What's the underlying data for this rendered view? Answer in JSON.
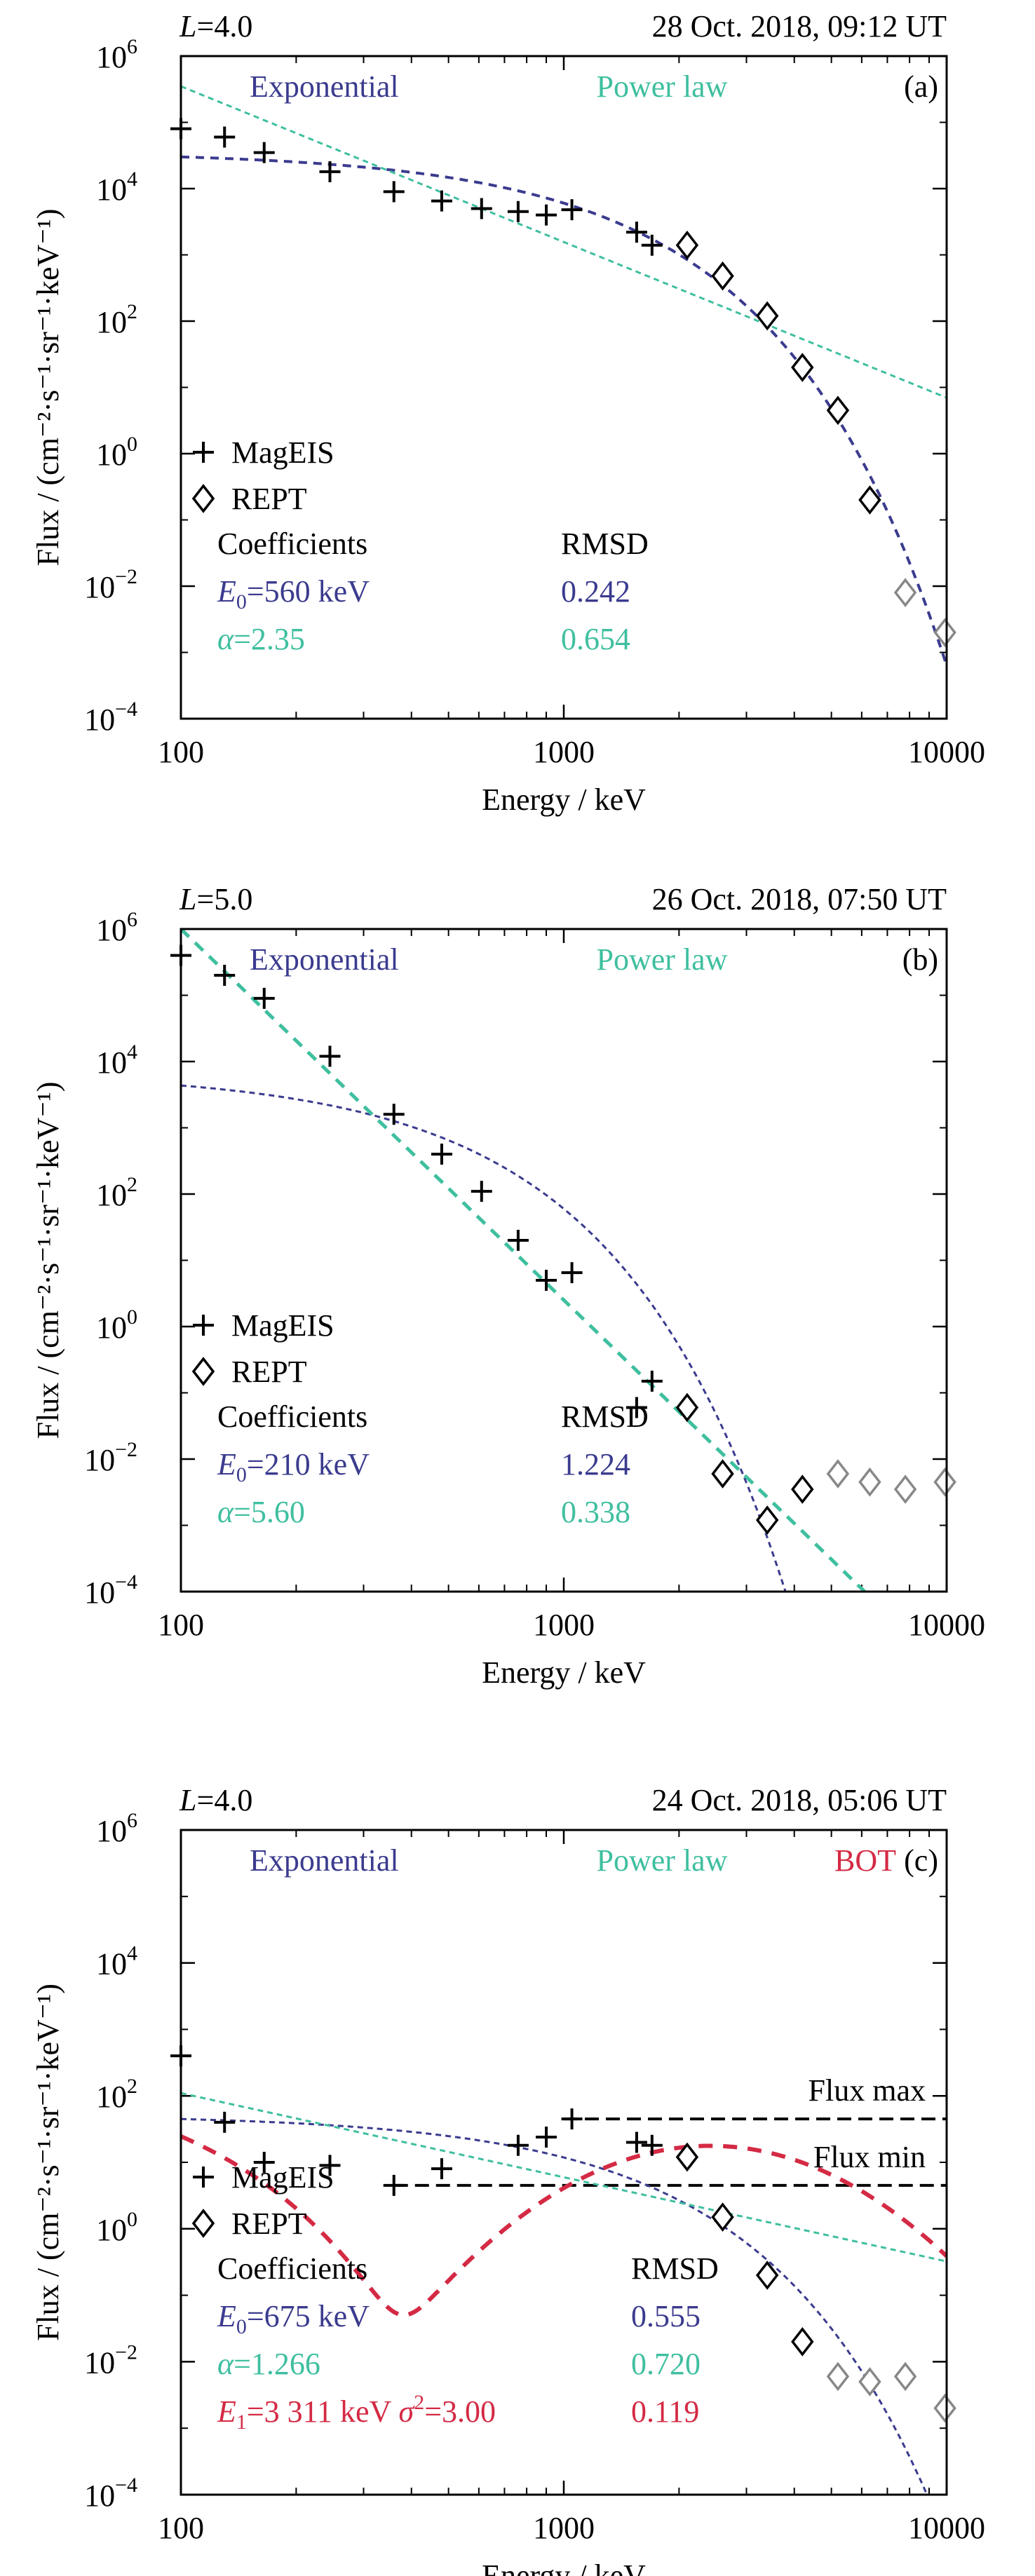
{
  "chart_data": [
    {
      "type": "scatter",
      "panel_label": "(a)",
      "header_left": {
        "var": "L",
        "eq": "=",
        "value": "4.0"
      },
      "header_right": "28 Oct. 2018, 09:12 UT",
      "xlabel": "Energy / keV",
      "ylabel": "Flux / (cm⁻²·s⁻¹·sr⁻¹·keV⁻¹)",
      "xscale": "log",
      "yscale": "log",
      "xlim": [
        100,
        10000
      ],
      "ylim": [
        0.0001,
        1000000
      ],
      "xticks": [
        {
          "v": 100,
          "label": "100"
        },
        {
          "v": 1000,
          "label": "1000"
        },
        {
          "v": 10000,
          "label": "10000"
        }
      ],
      "yticks": [
        {
          "v": 0.0001,
          "base": "10",
          "exp": "−4"
        },
        {
          "v": 0.01,
          "base": "10",
          "exp": "−2"
        },
        {
          "v": 1,
          "base": "10",
          "exp": "0"
        },
        {
          "v": 100,
          "base": "10",
          "exp": "2"
        },
        {
          "v": 10000,
          "base": "10",
          "exp": "4"
        },
        {
          "v": 1000000,
          "base": "10",
          "exp": "6"
        }
      ],
      "top_labels": [
        {
          "text": "Exponential",
          "color": "#3b3b8f",
          "pos": "left"
        },
        {
          "text": "Power law",
          "color": "#3fbf9f",
          "pos": "center"
        }
      ],
      "legend": [
        {
          "marker": "plus",
          "label": "MagEIS"
        },
        {
          "marker": "diamond",
          "label": "REPT"
        }
      ],
      "coefficients_title": "Coefficients",
      "rmsd_title": "RMSD",
      "coefficients": [
        {
          "sym": "E",
          "sub": "0",
          "text": "=560 keV",
          "rmsd": "0.242",
          "color": "#3b3b8f"
        },
        {
          "sym": "α",
          "sub": "",
          "text": "=2.35",
          "rmsd": "0.654",
          "color": "#3fbf9f"
        }
      ],
      "series": [
        {
          "name": "MagEIS",
          "marker": "plus",
          "color": "#000000",
          "points": [
            [
              100,
              80000
            ],
            [
              130,
              60000
            ],
            [
              165,
              35000
            ],
            [
              245,
              18000
            ],
            [
              360,
              9000
            ],
            [
              480,
              6500
            ],
            [
              610,
              5000
            ],
            [
              760,
              4500
            ],
            [
              900,
              4000
            ],
            [
              1050,
              4800
            ],
            [
              1550,
              2200
            ],
            [
              1700,
              1400
            ]
          ]
        },
        {
          "name": "REPT",
          "marker": "diamond",
          "color": "#000000",
          "points": [
            [
              2100,
              1400
            ],
            [
              2600,
              480
            ],
            [
              3400,
              120
            ],
            [
              4200,
              20
            ],
            [
              5200,
              4.5
            ],
            [
              6300,
              0.2
            ]
          ]
        },
        {
          "name": "REPT (background)",
          "marker": "diamond",
          "color": "#888888",
          "points": [
            [
              7800,
              0.008
            ],
            [
              9900,
              0.002
            ]
          ]
        }
      ],
      "fits": [
        {
          "name": "Exponential",
          "color": "#3b3b8f",
          "width": 3,
          "model": "exp",
          "j0": 36000,
          "E0": 560,
          "xmin": 100,
          "xmax": 10000
        },
        {
          "name": "Power law",
          "color": "#3fbf9f",
          "width": 2,
          "model": "pow",
          "A": 350000,
          "alpha": 2.35,
          "xmin": 100,
          "xmax": 10000
        }
      ]
    },
    {
      "type": "scatter",
      "panel_label": "(b)",
      "header_left": {
        "var": "L",
        "eq": "=",
        "value": "5.0"
      },
      "header_right": "26 Oct. 2018, 07:50 UT",
      "xlabel": "Energy / keV",
      "ylabel": "Flux / (cm⁻²·s⁻¹·sr⁻¹·keV⁻¹)",
      "xscale": "log",
      "yscale": "log",
      "xlim": [
        100,
        10000
      ],
      "ylim": [
        0.0001,
        1000000
      ],
      "xticks": [
        {
          "v": 100,
          "label": "100"
        },
        {
          "v": 1000,
          "label": "1000"
        },
        {
          "v": 10000,
          "label": "10000"
        }
      ],
      "yticks": [
        {
          "v": 0.0001,
          "base": "10",
          "exp": "−4"
        },
        {
          "v": 0.01,
          "base": "10",
          "exp": "−2"
        },
        {
          "v": 1,
          "base": "10",
          "exp": "0"
        },
        {
          "v": 100,
          "base": "10",
          "exp": "2"
        },
        {
          "v": 10000,
          "base": "10",
          "exp": "4"
        },
        {
          "v": 1000000,
          "base": "10",
          "exp": "6"
        }
      ],
      "top_labels": [
        {
          "text": "Exponential",
          "color": "#3b3b8f",
          "pos": "left"
        },
        {
          "text": "Power law",
          "color": "#3fbf9f",
          "pos": "center"
        }
      ],
      "legend": [
        {
          "marker": "plus",
          "label": "MagEIS"
        },
        {
          "marker": "diamond",
          "label": "REPT"
        }
      ],
      "coefficients_title": "Coefficients",
      "rmsd_title": "RMSD",
      "coefficients": [
        {
          "sym": "E",
          "sub": "0",
          "text": "=210 keV",
          "rmsd": "1.224",
          "color": "#3b3b8f"
        },
        {
          "sym": "α",
          "sub": "",
          "text": "=5.60",
          "rmsd": "0.338",
          "color": "#3fbf9f"
        }
      ],
      "series": [
        {
          "name": "MagEIS",
          "marker": "plus",
          "color": "#000000",
          "points": [
            [
              100,
              400000
            ],
            [
              130,
              200000
            ],
            [
              165,
              90000
            ],
            [
              245,
              12000
            ],
            [
              360,
              1600
            ],
            [
              480,
              400
            ],
            [
              610,
              110
            ],
            [
              760,
              20
            ],
            [
              900,
              5
            ],
            [
              1050,
              6.5
            ],
            [
              1550,
              0.06
            ],
            [
              1700,
              0.15
            ]
          ]
        },
        {
          "name": "REPT",
          "marker": "diamond",
          "color": "#000000",
          "points": [
            [
              2100,
              0.06
            ],
            [
              2600,
              0.006
            ],
            [
              3400,
              0.0012
            ],
            [
              4200,
              0.0035
            ]
          ]
        },
        {
          "name": "REPT (background)",
          "marker": "diamond",
          "color": "#888888",
          "points": [
            [
              5200,
              0.006
            ],
            [
              6300,
              0.0045
            ],
            [
              7800,
              0.0035
            ],
            [
              9900,
              0.0045
            ]
          ]
        }
      ],
      "fits": [
        {
          "name": "Exponential",
          "color": "#3b3b8f",
          "width": 2,
          "model": "exp",
          "j0": 7000,
          "E0": 210,
          "xmin": 100,
          "xmax": 10000
        },
        {
          "name": "Power law",
          "color": "#3fbf9f",
          "width": 4,
          "model": "pow",
          "A": 1000000,
          "alpha": 5.6,
          "xmin": 100,
          "xmax": 10000
        }
      ]
    },
    {
      "type": "scatter",
      "panel_label": "(c)",
      "header_left": {
        "var": "L",
        "eq": "=",
        "value": "4.0"
      },
      "header_right": "24 Oct. 2018, 05:06 UT",
      "xlabel": "Energy / keV",
      "ylabel": "Flux / (cm⁻²·s⁻¹·sr⁻¹·keV⁻¹)",
      "xscale": "log",
      "yscale": "log",
      "xlim": [
        100,
        10000
      ],
      "ylim": [
        0.0001,
        1000000
      ],
      "xticks": [
        {
          "v": 100,
          "label": "100"
        },
        {
          "v": 1000,
          "label": "1000"
        },
        {
          "v": 10000,
          "label": "10000"
        }
      ],
      "yticks": [
        {
          "v": 0.0001,
          "base": "10",
          "exp": "−4"
        },
        {
          "v": 0.01,
          "base": "10",
          "exp": "−2"
        },
        {
          "v": 1,
          "base": "10",
          "exp": "0"
        },
        {
          "v": 100,
          "base": "10",
          "exp": "2"
        },
        {
          "v": 10000,
          "base": "10",
          "exp": "4"
        },
        {
          "v": 1000000,
          "base": "10",
          "exp": "6"
        }
      ],
      "top_labels": [
        {
          "text": "Exponential",
          "color": "#3b3b8f",
          "pos": "left"
        },
        {
          "text": "Power law",
          "color": "#3fbf9f",
          "pos": "center"
        },
        {
          "text": "BOT",
          "color": "#d42a44",
          "pos": "right"
        }
      ],
      "legend": [
        {
          "marker": "plus",
          "label": "MagEIS"
        },
        {
          "marker": "diamond",
          "label": "REPT"
        }
      ],
      "coefficients_title": "Coefficients",
      "rmsd_title": "RMSD",
      "coefficients": [
        {
          "sym": "E",
          "sub": "0",
          "text": "=675 keV",
          "rmsd": "0.555",
          "color": "#3b3b8f"
        },
        {
          "sym": "α",
          "sub": "",
          "text": "=1.266",
          "rmsd": "0.720",
          "color": "#3fbf9f"
        },
        {
          "sym": "E",
          "sub": "1",
          "text": "=3 311 keV",
          "extra_sym": "σ",
          "extra_sup": "2",
          "extra_text": "=3.00",
          "rmsd": "0.119",
          "color": "#d42a44"
        }
      ],
      "hlines": [
        {
          "y": 45,
          "label": "Flux max",
          "xmin": 1000,
          "xmax": 10000
        },
        {
          "y": 4.5,
          "label": "Flux min",
          "xmin": 360,
          "xmax": 10000
        }
      ],
      "series": [
        {
          "name": "MagEIS",
          "marker": "plus",
          "color": "#000000",
          "points": [
            [
              100,
              400
            ],
            [
              130,
              40
            ],
            [
              165,
              10
            ],
            [
              245,
              9
            ],
            [
              360,
              4.5
            ],
            [
              480,
              8
            ],
            [
              760,
              18
            ],
            [
              900,
              24
            ],
            [
              1050,
              45
            ],
            [
              1550,
              20
            ],
            [
              1700,
              18
            ]
          ]
        },
        {
          "name": "REPT",
          "marker": "diamond",
          "color": "#000000",
          "points": [
            [
              2100,
              12
            ],
            [
              2600,
              1.5
            ],
            [
              3400,
              0.2
            ],
            [
              4200,
              0.02
            ]
          ]
        },
        {
          "name": "REPT (background)",
          "marker": "diamond",
          "color": "#888888",
          "points": [
            [
              5200,
              0.006
            ],
            [
              6300,
              0.005
            ],
            [
              7800,
              0.006
            ],
            [
              9900,
              0.002
            ]
          ]
        }
      ],
      "fits": [
        {
          "name": "Exponential",
          "color": "#3b3b8f",
          "width": 2,
          "model": "exp",
          "j0": 52,
          "E0": 675,
          "xmin": 100,
          "xmax": 10000
        },
        {
          "name": "Power law",
          "color": "#3fbf9f",
          "width": 2,
          "model": "pow",
          "A": 110,
          "alpha": 1.266,
          "xmin": 100,
          "xmax": 10000
        },
        {
          "name": "BOT",
          "color": "#d42a44",
          "width": 5,
          "model": "bot",
          "a": 300,
          "ea": 40,
          "b": 30,
          "E1": 1000,
          "w": 1.0,
          "E2": 3311,
          "s2": 3.0,
          "xmin": 100,
          "xmax": 10000
        }
      ]
    }
  ]
}
